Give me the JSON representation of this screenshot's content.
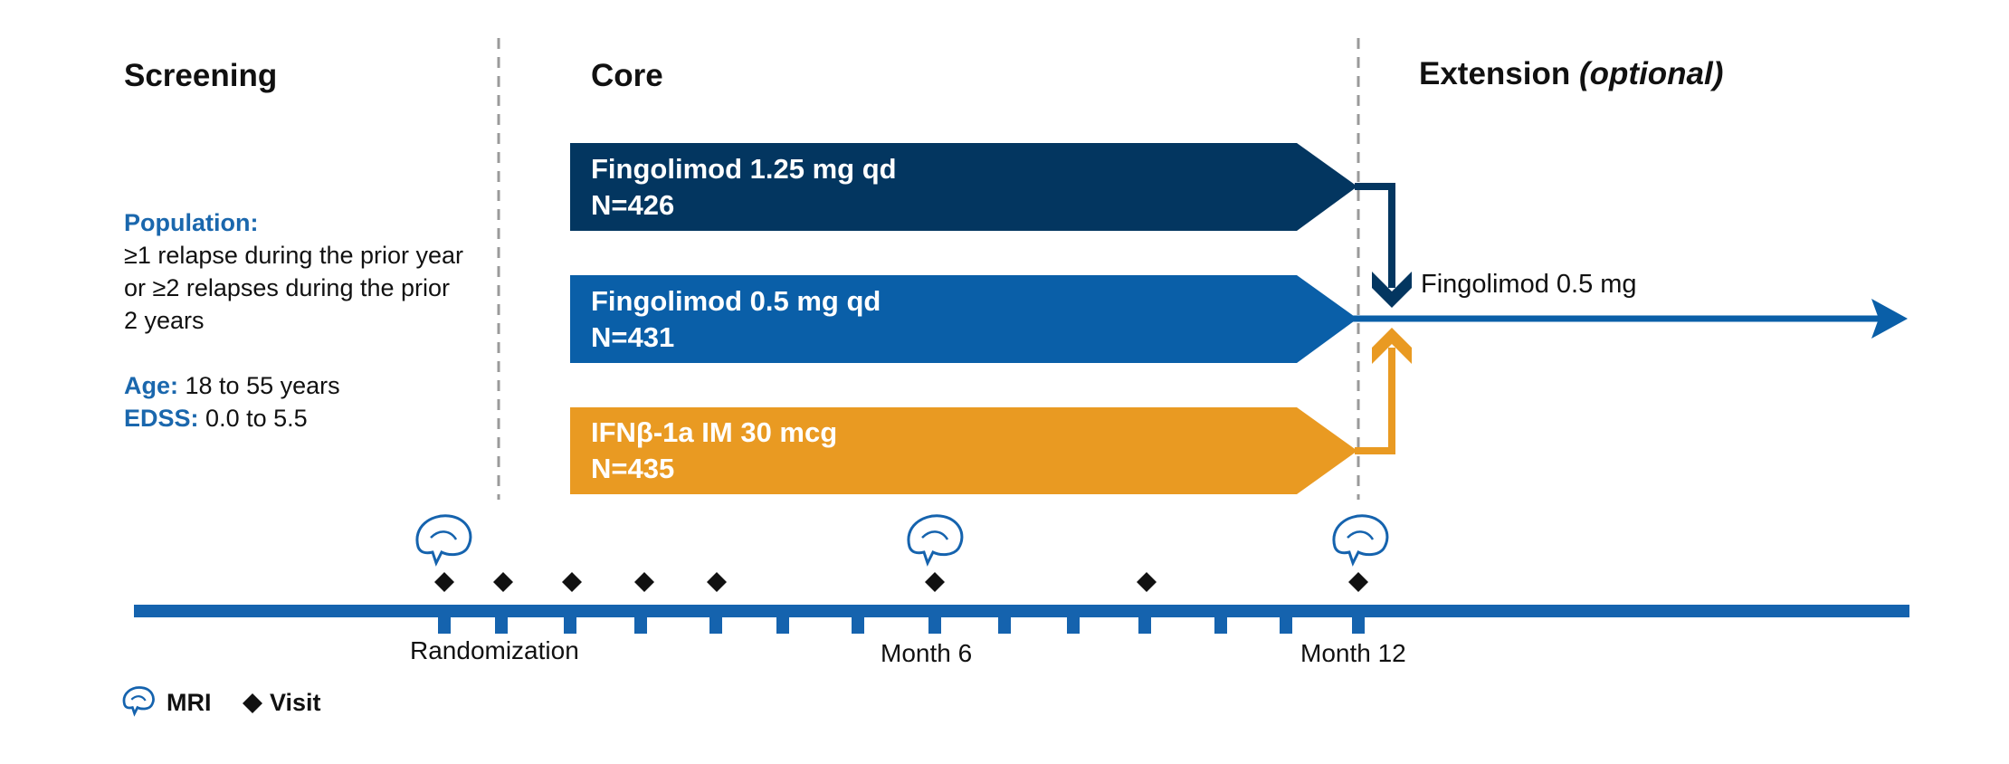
{
  "phases": {
    "screening": "Screening",
    "core": "Core",
    "extension": "Extension",
    "extension_optional": "(optional)"
  },
  "population": {
    "heading": "Population:",
    "lines": [
      "≥1 relapse during the prior year",
      "or ≥2 relapses during the prior",
      "2 years"
    ],
    "age_label": "Age:",
    "age_value": "18 to 55 years",
    "edss_label": "EDSS:",
    "edss_value": "0.0 to 5.5"
  },
  "arms": [
    {
      "drug": "Fingolimod 1.25 mg qd",
      "n": "N=426",
      "color": "#033660"
    },
    {
      "drug": "Fingolimod 0.5 mg qd",
      "n": "N=431",
      "color": "#0a5fa8"
    },
    {
      "drug": "IFNβ-1a IM 30 mcg",
      "n": "N=435",
      "color": "#e99a22"
    }
  ],
  "extension_arm": {
    "label": "Fingolimod 0.5 mg",
    "color": "#0a5fa8"
  },
  "timeline": {
    "color": "#1563ae",
    "labels": {
      "randomization": "Randomization",
      "month6": "Month 6",
      "month12": "Month 12"
    }
  },
  "legend": {
    "mri": "MRI",
    "visit": "Visit"
  },
  "icons": {
    "mri": "brain-mri-icon",
    "visit": "diamond-icon"
  }
}
